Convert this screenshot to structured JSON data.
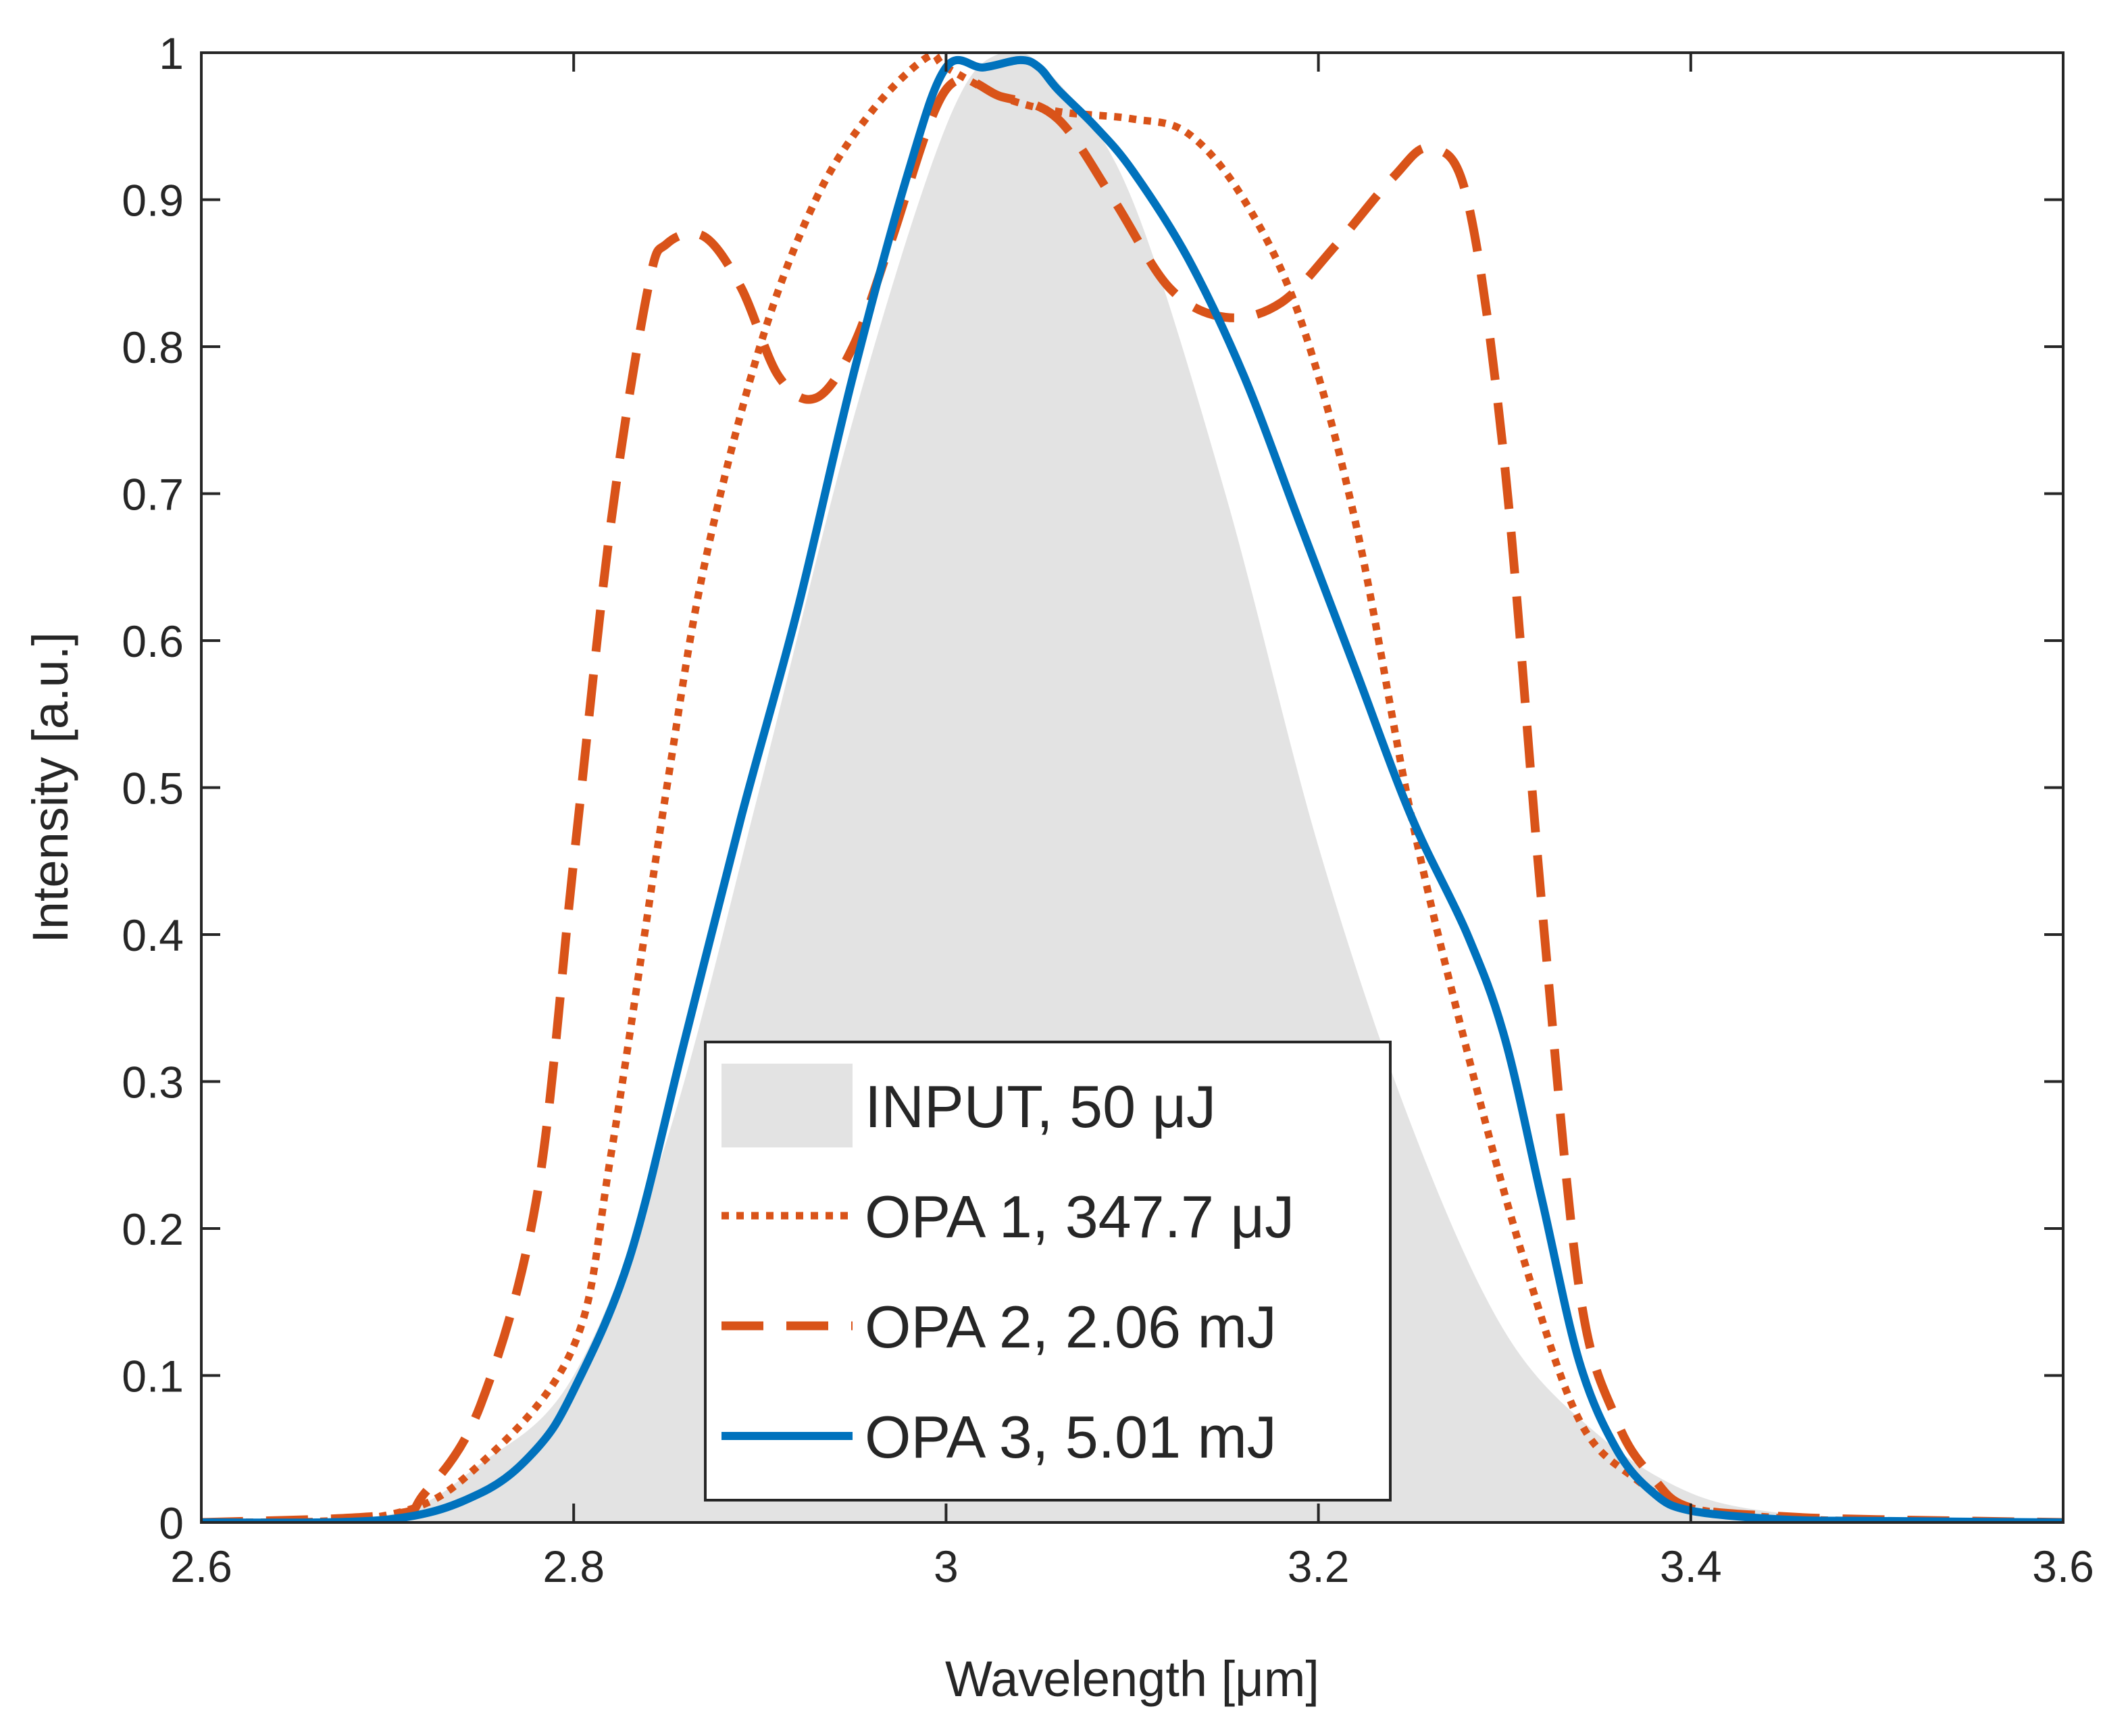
{
  "chart_data": {
    "type": "line",
    "title": "",
    "xlabel": "Wavelength [μm]",
    "ylabel": "Intensity [a.u.]",
    "xlim": [
      2.6,
      3.6
    ],
    "ylim": [
      0,
      1
    ],
    "xticks": [
      2.6,
      2.8,
      3.0,
      3.2,
      3.4,
      3.6
    ],
    "xtick_labels": [
      "2.6",
      "2.8",
      "3",
      "3.2",
      "3.4",
      "3.6"
    ],
    "yticks": [
      0,
      0.1,
      0.2,
      0.3,
      0.4,
      0.5,
      0.6,
      0.7,
      0.8,
      0.9,
      1
    ],
    "ytick_labels": [
      "0",
      "0.1",
      "0.2",
      "0.3",
      "0.4",
      "0.5",
      "0.6",
      "0.7",
      "0.8",
      "0.9",
      "1"
    ],
    "grid": false,
    "legend_position": "bottom-center",
    "series": [
      {
        "name": "INPUT, 50 μJ",
        "style": "area",
        "color": "#e3e3e3",
        "x": [
          2.6,
          2.7,
          2.75,
          2.8,
          2.85,
          2.9,
          2.95,
          3.0,
          3.03,
          3.06,
          3.1,
          3.15,
          3.2,
          3.25,
          3.3,
          3.35,
          3.4,
          3.45,
          3.5,
          3.6
        ],
        "y": [
          0.0,
          0.005,
          0.04,
          0.1,
          0.26,
          0.5,
          0.75,
          0.95,
          1.0,
          0.98,
          0.9,
          0.7,
          0.46,
          0.27,
          0.13,
          0.06,
          0.02,
          0.006,
          0.001,
          0.0
        ]
      },
      {
        "name": "OPA 1, 347.7 μJ",
        "style": "dotted",
        "color": "#d95319",
        "x": [
          2.6,
          2.7,
          2.75,
          2.8,
          2.82,
          2.85,
          2.87,
          2.9,
          2.93,
          2.96,
          2.99,
          3.0,
          3.03,
          3.06,
          3.1,
          3.13,
          3.16,
          3.19,
          3.22,
          3.25,
          3.28,
          3.31,
          3.34,
          3.37,
          3.4,
          3.45,
          3.5,
          3.6
        ],
        "y": [
          0.0,
          0.005,
          0.04,
          0.12,
          0.25,
          0.5,
          0.65,
          0.8,
          0.9,
          0.96,
          0.997,
          0.99,
          0.97,
          0.96,
          0.955,
          0.945,
          0.9,
          0.82,
          0.68,
          0.48,
          0.32,
          0.18,
          0.07,
          0.03,
          0.01,
          0.003,
          0.001,
          0.0
        ]
      },
      {
        "name": "OPA 2, 2.06 mJ",
        "style": "dashed",
        "color": "#d95319",
        "x": [
          2.6,
          2.7,
          2.72,
          2.75,
          2.78,
          2.8,
          2.82,
          2.84,
          2.85,
          2.87,
          2.89,
          2.91,
          2.93,
          2.95,
          2.97,
          3.0,
          3.03,
          3.06,
          3.09,
          3.12,
          3.15,
          3.18,
          3.21,
          3.24,
          3.26,
          3.28,
          3.3,
          3.32,
          3.34,
          3.36,
          3.38,
          3.4,
          3.45,
          3.5,
          3.6
        ],
        "y": [
          0.0,
          0.005,
          0.02,
          0.08,
          0.22,
          0.45,
          0.68,
          0.84,
          0.87,
          0.875,
          0.84,
          0.78,
          0.765,
          0.8,
          0.87,
          0.975,
          0.97,
          0.955,
          0.9,
          0.84,
          0.82,
          0.83,
          0.87,
          0.915,
          0.935,
          0.9,
          0.72,
          0.42,
          0.16,
          0.07,
          0.03,
          0.01,
          0.004,
          0.002,
          0.0
        ]
      },
      {
        "name": "OPA 3, 5.01 mJ",
        "style": "solid",
        "color": "#0072bd",
        "x": [
          2.6,
          2.7,
          2.75,
          2.78,
          2.8,
          2.83,
          2.86,
          2.89,
          2.92,
          2.95,
          2.98,
          3.0,
          3.02,
          3.04,
          3.05,
          3.06,
          3.08,
          3.1,
          3.13,
          3.16,
          3.19,
          3.22,
          3.25,
          3.28,
          3.3,
          3.32,
          3.34,
          3.36,
          3.38,
          3.4,
          3.45,
          3.5,
          3.6
        ],
        "y": [
          0.0,
          0.002,
          0.02,
          0.05,
          0.09,
          0.18,
          0.33,
          0.48,
          0.62,
          0.78,
          0.92,
          0.99,
          0.99,
          0.995,
          0.99,
          0.975,
          0.95,
          0.92,
          0.86,
          0.78,
          0.68,
          0.58,
          0.48,
          0.4,
          0.33,
          0.22,
          0.11,
          0.05,
          0.02,
          0.008,
          0.002,
          0.001,
          0.0
        ]
      }
    ]
  }
}
